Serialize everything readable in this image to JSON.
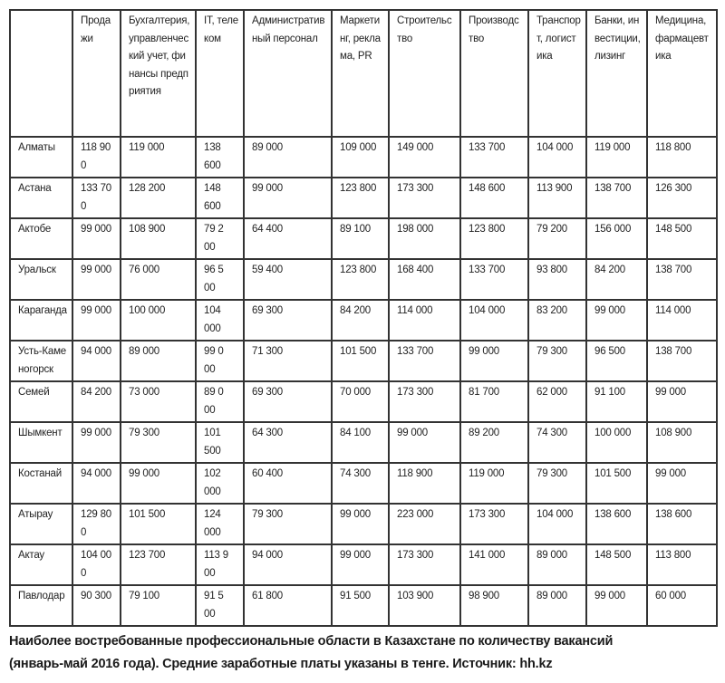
{
  "table": {
    "headers": [
      "",
      "Продажи",
      "Бухгалтерия, управленческий учет, финансы предприятия",
      "IT, телеком",
      "Административный персонал",
      "Маркетинг, реклама, PR",
      "Строительство",
      "Производство",
      "Транспорт, логистика",
      "Банки, инвестиции, лизинг",
      "Медицина, фармацевтика"
    ],
    "rows": [
      [
        "Алматы",
        "118 900",
        "119 000",
        "138 600",
        "89 000",
        "109 000",
        "149 000",
        "133 700",
        "104 000",
        "119 000",
        "118 800"
      ],
      [
        "Астана",
        "133 700",
        "128 200",
        "148 600",
        "99 000",
        "123 800",
        "173 300",
        "148 600",
        "113 900",
        "138 700",
        "126 300"
      ],
      [
        "Актобе",
        "99 000",
        "108 900",
        "79 200",
        "64 400",
        "89 100",
        "198 000",
        "123 800",
        "79 200",
        "156 000",
        "148 500"
      ],
      [
        "Уральск",
        "99 000",
        "76 000",
        "96 500",
        "59 400",
        "123 800",
        "168 400",
        "133 700",
        "93 800",
        "84 200",
        "138 700"
      ],
      [
        "Караганда",
        "99 000",
        "100 000",
        "104 000",
        "69 300",
        "84 200",
        "114 000",
        "104 000",
        "83 200",
        "99 000",
        "114 000"
      ],
      [
        "Усть-Каменогорск",
        "94 000",
        "89 000",
        "99 000",
        "71 300",
        "101 500",
        "133 700",
        "99 000",
        "79 300",
        "96 500",
        "138 700"
      ],
      [
        "Семей",
        "84 200",
        "73 000",
        "89 000",
        "69 300",
        "70 000",
        "173 300",
        "81 700",
        "62 000",
        "91 100",
        "99 000"
      ],
      [
        "Шымкент",
        "99 000",
        "79 300",
        "101 500",
        "64 300",
        "84 100",
        "99 000",
        "89 200",
        "74 300",
        "100 000",
        "108 900"
      ],
      [
        "Костанай",
        "94 000",
        "99 000",
        "102 000",
        "60 400",
        "74 300",
        "118 900",
        "119 000",
        "79 300",
        "101 500",
        "99 000"
      ],
      [
        "Атырау",
        "129 800",
        "101 500",
        "124 000",
        "79 300",
        "99 000",
        "223 000",
        "173 300",
        "104 000",
        "138 600",
        "138 600"
      ],
      [
        "Актау",
        "104 000",
        "123 700",
        "113 900",
        "94 000",
        "99 000",
        "173 300",
        "141 000",
        "89 000",
        "148 500",
        "113 800"
      ],
      [
        "Павлодар",
        "90 300",
        "79 100",
        "91 500",
        "61 800",
        "91 500",
        "103 900",
        "98 900",
        "89 000",
        "99 000",
        "60 000"
      ]
    ]
  },
  "caption": {
    "line1": "Наиболее востребованные профессиональные области в Казахстане по количеству вакансий",
    "line2": "(январь-май 2016 года). Средние заработные платы указаны в тенге. Источник: hh.kz"
  }
}
